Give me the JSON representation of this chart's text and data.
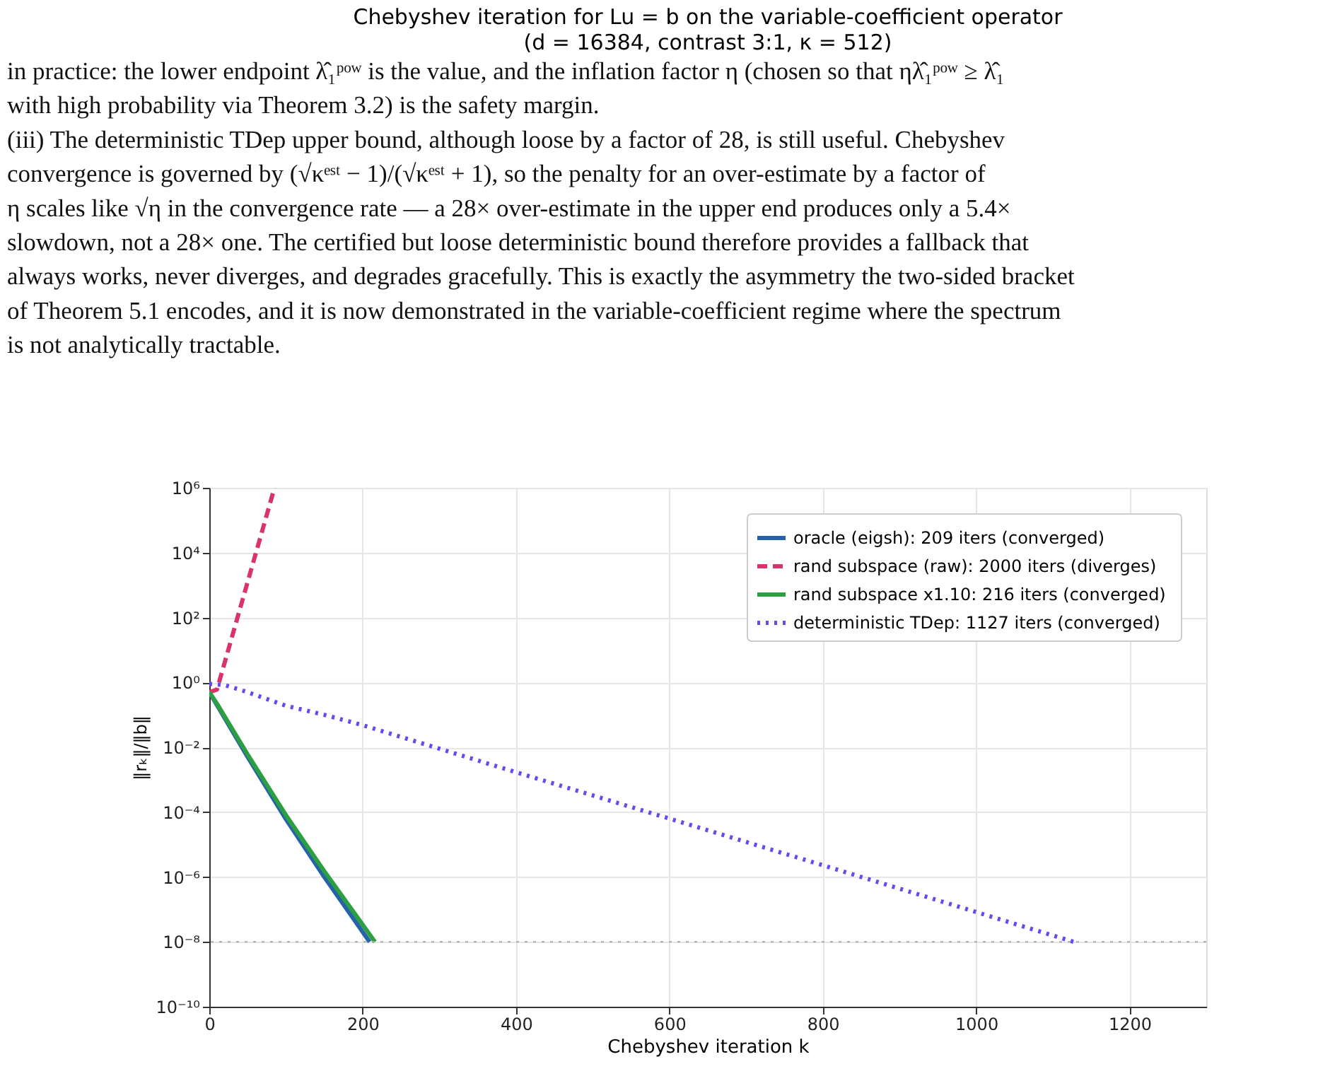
{
  "chart_data": {
    "type": "line",
    "title": "Chebyshev iteration for Lu = b on the variable-coefficient operator",
    "subtitle": "(d = 16384, contrast 3:1, κ = 512)",
    "xlabel": "Chebyshev iteration k",
    "ylabel": "‖rₖ‖/‖b‖",
    "annotations": [
      "in practice: the lower endpoint λ̂₁ᵖᵒʷ is the value, and the inflation factor η (chosen so that ηλ̂₁ᵖᵒʷ ≥ λ̂₁",
      "with high probability via Theorem 3.2) is the safety margin.",
      "(iii) The deterministic TDep upper bound, although loose by a factor of 28, is still useful. Chebyshev",
      "convergence is governed by (√κᵉˢᵗ − 1)/(√κᵉˢᵗ + 1), so the penalty for an over-estimate by a factor of",
      "η scales like √η in the convergence rate — a 28× over-estimate in the upper end produces only a 5.4×",
      "slowdown, not a 28× one. The certified but loose deterministic bound therefore provides a fallback that",
      "always works, never diverges, and degrades gracefully. This is exactly the asymmetry the two-sided bracket",
      "of Theorem 5.1 encodes, and it is now demonstrated in the variable-coefficient regime where the spectrum",
      "is not analytically tractable."
    ],
    "series": [
      {
        "name": "oracle (eigsh): 209 iters  (converged)",
        "color": "#2463aa",
        "line_style": "solid",
        "x": [
          0,
          10,
          50,
          100,
          150,
          209
        ],
        "values": [
          0.5,
          0.2,
          0.005,
          6e-05,
          1e-06,
          1e-08
        ]
      },
      {
        "name": "rand subspace (raw): 2000 iters  (diverges)",
        "color": "#d9336c",
        "line_style": "dashed",
        "x": [
          0,
          10,
          85
        ],
        "values": [
          0.5,
          0.6,
          1000000
        ]
      },
      {
        "name": "rand subspace x1.10: 216 iters  (converged)",
        "color": "#2ca040",
        "line_style": "solid",
        "x": [
          0,
          10,
          50,
          100,
          150,
          216
        ],
        "values": [
          0.5,
          0.22,
          0.006,
          8e-05,
          1.5e-06,
          1e-08
        ]
      },
      {
        "name": "deterministic TDep: 1127 iters  (converged)",
        "color": "#6a48f0",
        "line_style": "dotted",
        "x": [
          0,
          20,
          50,
          100,
          150,
          200,
          400,
          600,
          800,
          1000,
          1127
        ],
        "values": [
          0.9,
          0.83,
          0.5,
          0.19,
          0.1,
          0.048,
          0.0017,
          6.3e-05,
          2.3e-06,
          8.3e-08,
          1e-08
        ]
      }
    ],
    "ref_lines": [
      {
        "axis": "y",
        "value": 1e-08,
        "color": "#aaaaaa",
        "line_style": "dotted"
      }
    ],
    "xlim": [
      0,
      1300
    ],
    "xticks": [
      0,
      200,
      400,
      600,
      800,
      1000,
      1200
    ],
    "ylim": [
      1e-10,
      1000000
    ],
    "yticks": [
      {
        "value": 1e-10,
        "label": "10⁻¹⁰"
      },
      {
        "value": 1e-08,
        "label": "10⁻⁸"
      },
      {
        "value": 1e-06,
        "label": "10⁻⁶"
      },
      {
        "value": 0.0001,
        "label": "10⁻⁴"
      },
      {
        "value": 0.01,
        "label": "10⁻²"
      },
      {
        "value": 1,
        "label": "10⁰"
      },
      {
        "value": 100,
        "label": "10²"
      },
      {
        "value": 10000,
        "label": "10⁴"
      },
      {
        "value": 1000000,
        "label": "10⁶"
      }
    ],
    "log": "y",
    "grid": true,
    "legend": "top right"
  }
}
